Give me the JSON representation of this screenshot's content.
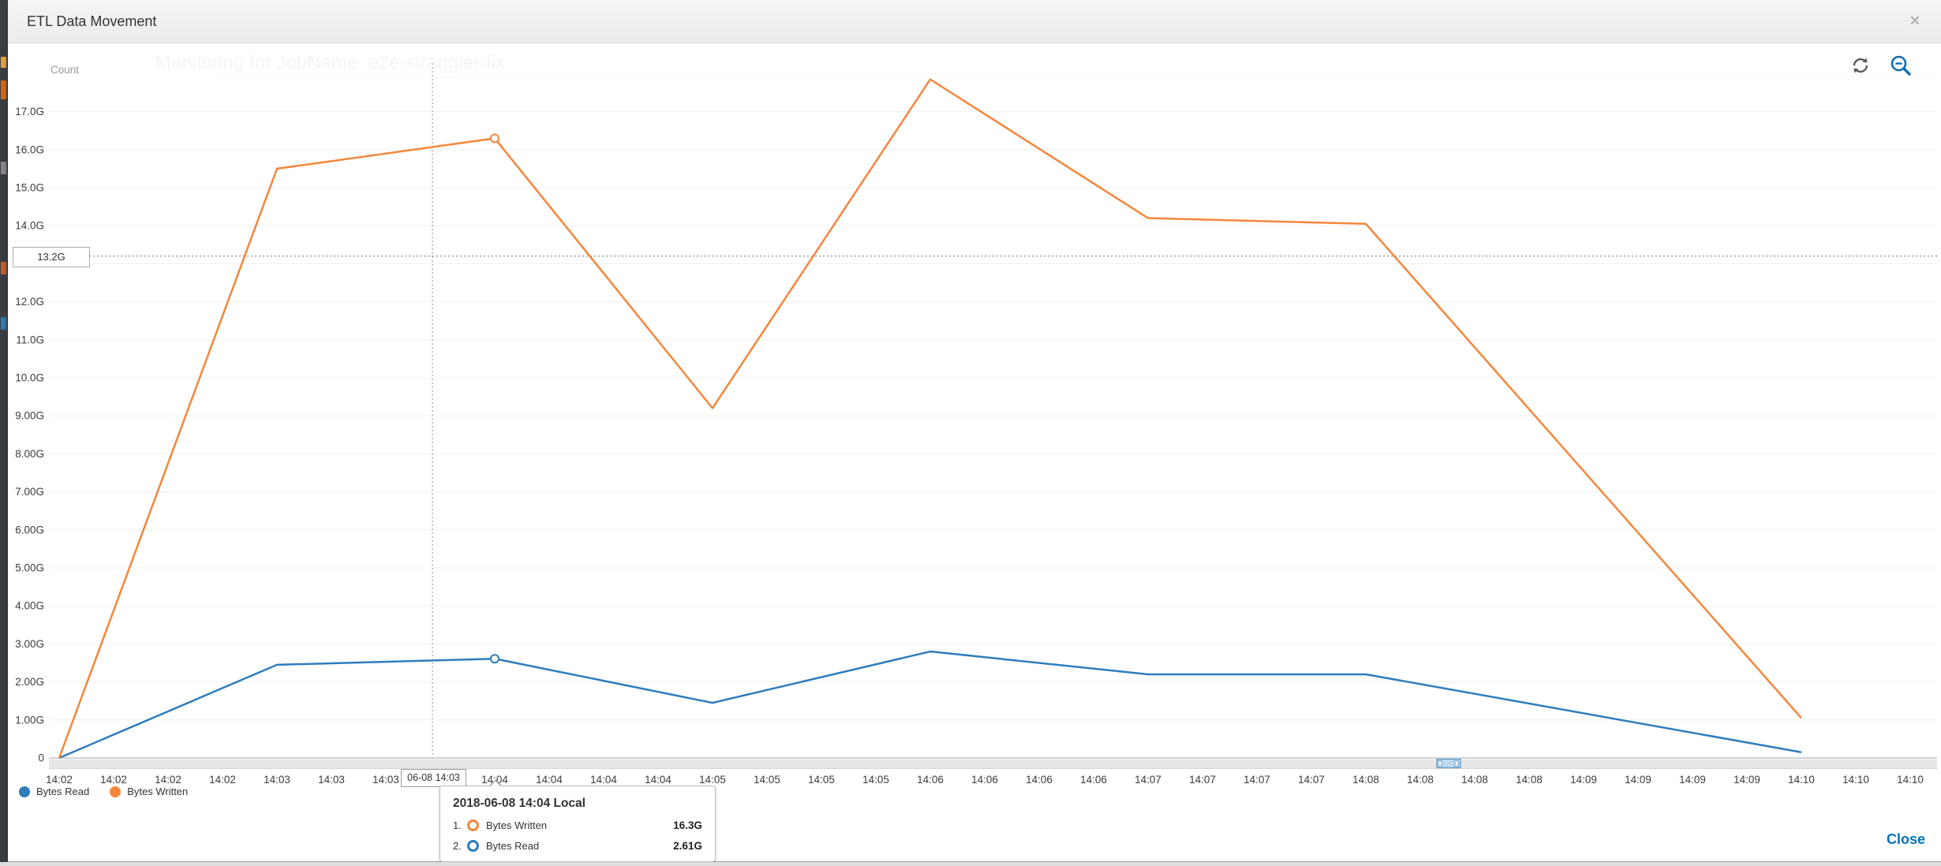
{
  "header": {
    "title": "ETL Data Movement",
    "close_glyph": "✕"
  },
  "watermark": {
    "text": "Monitoring for JobName: e2e-straggler-fix"
  },
  "chart_data": {
    "type": "line",
    "title": "ETL Data Movement",
    "xlabel": "",
    "ylabel": "Count",
    "xlim": [
      "14:02",
      "14:10"
    ],
    "ylim": [
      0,
      18
    ],
    "grid": true,
    "legend_position": "bottom-left",
    "x_minutes": [
      "14:02",
      "14:03",
      "14:04",
      "14:05",
      "14:06",
      "14:07",
      "14:08",
      "14:09",
      "14:10"
    ],
    "x_tick_labels": [
      "14:02",
      "14:02",
      "14:02",
      "14:02",
      "14:03",
      "14:03",
      "14:03",
      "",
      "14:04",
      "14:04",
      "14:04",
      "14:04",
      "14:05",
      "14:05",
      "14:05",
      "14:05",
      "14:06",
      "14:06",
      "14:06",
      "14:06",
      "14:07",
      "14:07",
      "14:07",
      "14:07",
      "14:08",
      "14:08",
      "14:08",
      "14:08",
      "14:09",
      "14:09",
      "14:09",
      "14:09",
      "14:10",
      "14:10",
      "14:10"
    ],
    "y_ticks": [
      {
        "label": "17.0G",
        "v": 17
      },
      {
        "label": "16.0G",
        "v": 16
      },
      {
        "label": "15.0G",
        "v": 15
      },
      {
        "label": "14.0G",
        "v": 14
      },
      {
        "label": "13.0G",
        "v": 13
      },
      {
        "label": "12.0G",
        "v": 12
      },
      {
        "label": "11.0G",
        "v": 11
      },
      {
        "label": "10.0G",
        "v": 10
      },
      {
        "label": "9.00G",
        "v": 9
      },
      {
        "label": "8.00G",
        "v": 8
      },
      {
        "label": "7.00G",
        "v": 7
      },
      {
        "label": "6.00G",
        "v": 6
      },
      {
        "label": "5.00G",
        "v": 5
      },
      {
        "label": "4.00G",
        "v": 4
      },
      {
        "label": "3.00G",
        "v": 3
      },
      {
        "label": "2.00G",
        "v": 2
      },
      {
        "label": "1.00G",
        "v": 1
      },
      {
        "label": "0",
        "v": 0
      }
    ],
    "series": [
      {
        "name": "Bytes Read",
        "color": "#2e7dbd",
        "points": [
          [
            0,
            0
          ],
          [
            1,
            2.45
          ],
          [
            2,
            2.61
          ],
          [
            3,
            1.45
          ],
          [
            4,
            2.8
          ],
          [
            5,
            2.2
          ],
          [
            6,
            2.2
          ],
          [
            8,
            0.15
          ]
        ]
      },
      {
        "name": "Bytes Written",
        "color": "#f5863c",
        "points": [
          [
            0,
            0
          ],
          [
            1,
            15.5
          ],
          [
            2,
            16.3
          ],
          [
            3,
            9.2
          ],
          [
            4,
            17.85
          ],
          [
            5,
            14.2
          ],
          [
            6,
            14.05
          ],
          [
            8,
            1.05
          ]
        ]
      }
    ],
    "marker_minute": 2,
    "legend": [
      {
        "label": "Bytes Read",
        "color": "#2e7dbd"
      },
      {
        "label": "Bytes Written",
        "color": "#f5863c"
      }
    ],
    "crosshair": {
      "x_label": "06-08 14:03",
      "y_label": "13.2G",
      "y_value": 13.2,
      "x_minute_position": 1.714
    }
  },
  "tooltip": {
    "title": "2018-06-08 14:04 Local",
    "rows": [
      {
        "num": "1.",
        "label": "Bytes Written",
        "value": "16.3G",
        "color": "#f5863c"
      },
      {
        "num": "2.",
        "label": "Bytes Read",
        "value": "2.61G",
        "color": "#2e7dbd"
      }
    ]
  },
  "footer": {
    "close_label": "Close"
  },
  "colors": {
    "link_blue": "#0073bb",
    "icon_gray": "#565656",
    "axis_band": "#e7e7e7"
  }
}
